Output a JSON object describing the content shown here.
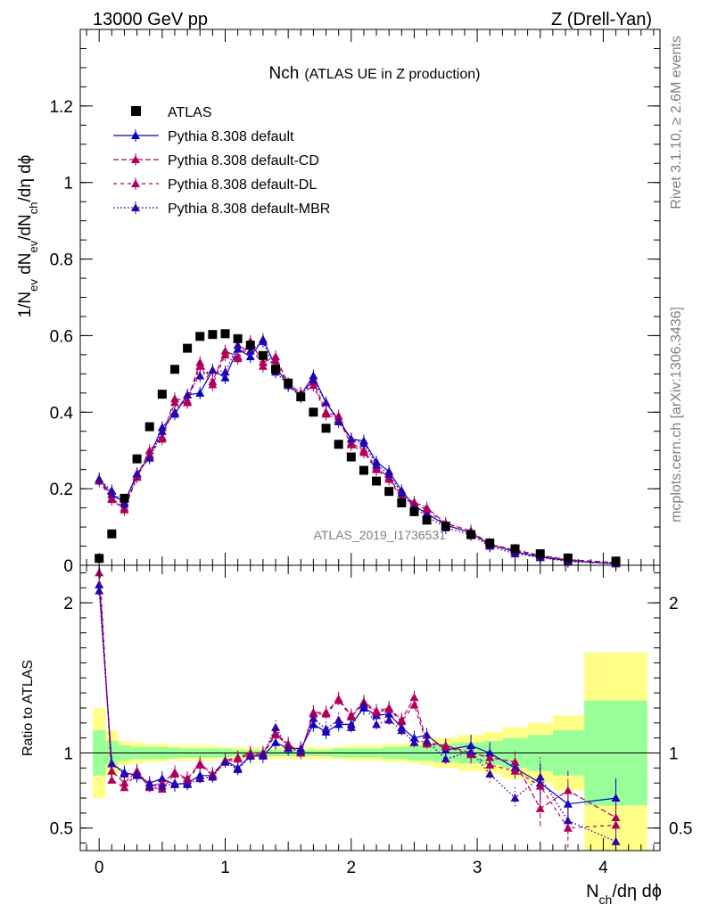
{
  "header": {
    "left": "13000 GeV pp",
    "right": "Z (Drell-Yan)"
  },
  "side_labels": {
    "rivet": "Rivet 3.1.10, ≥ 2.6M events",
    "mcplots": "mcplots.cern.ch [arXiv:1306.3436]"
  },
  "watermark": "ATLAS_2019_I1736531",
  "colors": {
    "atlas": "#000000",
    "default": "#0000cc",
    "cd": "#b0005c",
    "dl": "#b0005c",
    "mbr": "#3300aa",
    "band_inner": "#99ff99",
    "band_outer": "#ffff88"
  },
  "chart_data": [
    {
      "type": "scatter",
      "title": "Nch",
      "subtitle": "(ATLAS UE in Z production)",
      "ylabel": {
        "main": "1/N",
        "sub1": "ev",
        "mid1": " dN",
        "sub2": "ev",
        "mid2": "/dN",
        "sub3": "ch",
        "tail": "/dη dϕ"
      },
      "xlim": [
        -0.15,
        4.45
      ],
      "ylim": [
        0,
        1.4
      ],
      "yticks": [
        0,
        0.2,
        0.4,
        0.6,
        0.8,
        1,
        1.2
      ],
      "ytick_labels": [
        "0",
        "0.2",
        "0.4",
        "0.6",
        "0.8",
        "1",
        "1.2"
      ],
      "legend": [
        "ATLAS",
        "Pythia 8.308 default",
        "Pythia 8.308 default-CD",
        "Pythia 8.308 default-DL",
        "Pythia 8.308 default-MBR"
      ],
      "data": {
        "x": [
          0.0,
          0.1,
          0.2,
          0.3,
          0.4,
          0.5,
          0.6,
          0.7,
          0.8,
          0.9,
          1.0,
          1.1,
          1.2,
          1.3,
          1.4,
          1.5,
          1.6,
          1.7,
          1.8,
          1.9,
          2.0,
          2.1,
          2.2,
          2.3,
          2.4,
          2.5,
          2.6,
          2.75,
          2.95,
          3.1,
          3.3,
          3.5,
          3.72,
          4.1
        ],
        "y": [
          0.018,
          0.082,
          0.175,
          0.278,
          0.362,
          0.447,
          0.512,
          0.567,
          0.598,
          0.603,
          0.605,
          0.592,
          0.575,
          0.548,
          0.512,
          0.476,
          0.44,
          0.4,
          0.358,
          0.316,
          0.283,
          0.248,
          0.22,
          0.193,
          0.163,
          0.14,
          0.118,
          0.102,
          0.08,
          0.058,
          0.043,
          0.03,
          0.019,
          0.011
        ]
      },
      "series": [
        {
          "name": "Pythia 8.308 default",
          "x": [
            0.0,
            0.1,
            0.2,
            0.3,
            0.4,
            0.5,
            0.6,
            0.7,
            0.8,
            0.9,
            1.0,
            1.1,
            1.2,
            1.3,
            1.4,
            1.5,
            1.6,
            1.7,
            1.8,
            1.9,
            2.0,
            2.1,
            2.2,
            2.3,
            2.4,
            2.5,
            2.6,
            2.75,
            2.95,
            3.1,
            3.3,
            3.5,
            3.72,
            4.1
          ],
          "y": [
            0.225,
            0.185,
            0.165,
            0.238,
            0.285,
            0.36,
            0.395,
            0.445,
            0.45,
            0.51,
            0.49,
            0.565,
            0.545,
            0.59,
            0.52,
            0.47,
            0.445,
            0.495,
            0.425,
            0.38,
            0.33,
            0.325,
            0.27,
            0.245,
            0.195,
            0.155,
            0.135,
            0.105,
            0.085,
            0.055,
            0.035,
            0.022,
            0.012,
            0.004
          ]
        },
        {
          "name": "Pythia 8.308 default-CD",
          "x": [
            0.0,
            0.1,
            0.2,
            0.3,
            0.4,
            0.5,
            0.6,
            0.7,
            0.8,
            0.9,
            1.0,
            1.1,
            1.2,
            1.3,
            1.4,
            1.5,
            1.6,
            1.7,
            1.8,
            1.9,
            2.0,
            2.1,
            2.2,
            2.3,
            2.4,
            2.5,
            2.6,
            2.75,
            2.95,
            3.1,
            3.3,
            3.5,
            3.72,
            4.1
          ],
          "y": [
            0.225,
            0.175,
            0.15,
            0.232,
            0.3,
            0.335,
            0.435,
            0.43,
            0.53,
            0.48,
            0.56,
            0.545,
            0.585,
            0.53,
            0.545,
            0.475,
            0.45,
            0.48,
            0.4,
            0.39,
            0.32,
            0.3,
            0.255,
            0.23,
            0.18,
            0.165,
            0.15,
            0.11,
            0.09,
            0.055,
            0.04,
            0.026,
            0.015,
            0.007
          ]
        },
        {
          "name": "Pythia 8.308 default-DL",
          "x": [
            0.0,
            0.1,
            0.2,
            0.3,
            0.4,
            0.5,
            0.6,
            0.7,
            0.8,
            0.9,
            1.0,
            1.1,
            1.2,
            1.3,
            1.4,
            1.5,
            1.6,
            1.7,
            1.8,
            1.9,
            2.0,
            2.1,
            2.2,
            2.3,
            2.4,
            2.5,
            2.6,
            2.75,
            2.95,
            3.1,
            3.3,
            3.5,
            3.72,
            4.1
          ],
          "y": [
            0.22,
            0.172,
            0.145,
            0.23,
            0.29,
            0.33,
            0.425,
            0.425,
            0.52,
            0.472,
            0.55,
            0.54,
            0.575,
            0.52,
            0.535,
            0.47,
            0.445,
            0.47,
            0.395,
            0.382,
            0.315,
            0.295,
            0.25,
            0.225,
            0.176,
            0.16,
            0.145,
            0.106,
            0.086,
            0.052,
            0.038,
            0.024,
            0.014,
            0.006
          ]
        },
        {
          "name": "Pythia 8.308 default-MBR",
          "x": [
            0.0,
            0.1,
            0.2,
            0.3,
            0.4,
            0.5,
            0.6,
            0.7,
            0.8,
            0.9,
            1.0,
            1.1,
            1.2,
            1.3,
            1.4,
            1.5,
            1.6,
            1.7,
            1.8,
            1.9,
            2.0,
            2.1,
            2.2,
            2.3,
            2.4,
            2.5,
            2.6,
            2.75,
            2.95,
            3.1,
            3.3,
            3.5,
            3.72,
            4.1
          ],
          "y": [
            0.225,
            0.195,
            0.16,
            0.24,
            0.28,
            0.35,
            0.4,
            0.445,
            0.495,
            0.51,
            0.505,
            0.575,
            0.56,
            0.585,
            0.505,
            0.47,
            0.44,
            0.485,
            0.425,
            0.375,
            0.33,
            0.318,
            0.262,
            0.238,
            0.188,
            0.15,
            0.128,
            0.098,
            0.08,
            0.05,
            0.03,
            0.02,
            0.01,
            0.004
          ]
        }
      ]
    },
    {
      "type": "line",
      "ylabel": "Ratio to ATLAS",
      "xlabel": {
        "a": "N",
        "sub": "ch",
        "b": "/dη dϕ"
      },
      "xlim": [
        -0.15,
        4.45
      ],
      "ylim": [
        0.35,
        2.25
      ],
      "xticks": [
        0,
        1,
        2,
        3,
        4
      ],
      "xtick_labels": [
        "0",
        "1",
        "2",
        "3",
        "4"
      ],
      "yticks": [
        0.5,
        1,
        2
      ],
      "ytick_labels": [
        "0.5",
        "1",
        "2"
      ],
      "bands": {
        "edges": [
          -0.05,
          0.05,
          0.15,
          0.25,
          0.35,
          0.45,
          0.55,
          0.65,
          0.75,
          0.85,
          0.95,
          1.05,
          1.15,
          1.25,
          1.35,
          1.45,
          1.55,
          1.65,
          1.75,
          1.85,
          1.95,
          2.05,
          2.15,
          2.25,
          2.35,
          2.45,
          2.55,
          2.65,
          2.85,
          3.05,
          3.2,
          3.4,
          3.6,
          3.85,
          4.35
        ],
        "inner": [
          0.15,
          0.08,
          0.05,
          0.04,
          0.04,
          0.04,
          0.035,
          0.03,
          0.03,
          0.03,
          0.03,
          0.02,
          0.02,
          0.02,
          0.02,
          0.02,
          0.02,
          0.02,
          0.02,
          0.03,
          0.03,
          0.03,
          0.03,
          0.04,
          0.04,
          0.05,
          0.05,
          0.06,
          0.07,
          0.08,
          0.1,
          0.12,
          0.15,
          0.35
        ],
        "outer": [
          0.3,
          0.15,
          0.08,
          0.07,
          0.06,
          0.06,
          0.05,
          0.05,
          0.05,
          0.05,
          0.04,
          0.04,
          0.04,
          0.04,
          0.04,
          0.04,
          0.04,
          0.04,
          0.04,
          0.04,
          0.05,
          0.05,
          0.05,
          0.06,
          0.06,
          0.07,
          0.08,
          0.1,
          0.12,
          0.14,
          0.17,
          0.2,
          0.25,
          0.67
        ]
      },
      "series": [
        {
          "name": "Pythia 8.308 default",
          "x": [
            0.0,
            0.1,
            0.2,
            0.3,
            0.4,
            0.5,
            0.6,
            0.7,
            0.8,
            0.9,
            1.0,
            1.1,
            1.2,
            1.3,
            1.4,
            1.5,
            1.6,
            1.7,
            1.8,
            1.9,
            2.0,
            2.1,
            2.2,
            2.3,
            2.4,
            2.5,
            2.6,
            2.75,
            2.95,
            3.1,
            3.3,
            3.5,
            3.72,
            4.1
          ],
          "y": [
            2.12,
            0.93,
            0.87,
            0.85,
            0.8,
            0.83,
            0.79,
            0.8,
            0.85,
            0.85,
            0.95,
            0.9,
            0.98,
            0.98,
            1.07,
            1.03,
            1.03,
            1.19,
            1.14,
            1.19,
            1.19,
            1.3,
            1.25,
            1.26,
            1.17,
            1.1,
            1.12,
            1.02,
            1.05,
            1.0,
            0.9,
            0.8,
            0.66,
            0.7
          ]
        },
        {
          "name": "Pythia 8.308 default-CD",
          "x": [
            0.0,
            0.1,
            0.2,
            0.3,
            0.4,
            0.5,
            0.6,
            0.7,
            0.8,
            0.9,
            1.0,
            1.1,
            1.2,
            1.3,
            1.4,
            1.5,
            1.6,
            1.7,
            1.8,
            1.9,
            2.0,
            2.1,
            2.2,
            2.3,
            2.4,
            2.5,
            2.6,
            2.75,
            2.95,
            3.1,
            3.3,
            3.5,
            3.72,
            4.1
          ],
          "y": [
            2.2,
            0.88,
            0.8,
            0.88,
            0.78,
            0.8,
            0.87,
            0.83,
            0.93,
            0.86,
            0.95,
            0.97,
            1.0,
            1.0,
            1.13,
            1.06,
            1.0,
            1.27,
            1.27,
            1.36,
            1.25,
            1.34,
            1.28,
            1.3,
            1.22,
            1.37,
            1.07,
            1.05,
            1.0,
            0.97,
            0.94,
            0.63,
            0.75,
            0.57
          ]
        },
        {
          "name": "Pythia 8.308 default-DL",
          "x": [
            0.0,
            0.1,
            0.2,
            0.3,
            0.4,
            0.5,
            0.6,
            0.7,
            0.8,
            0.9,
            1.0,
            1.1,
            1.2,
            1.3,
            1.4,
            1.5,
            1.6,
            1.7,
            1.8,
            1.9,
            2.0,
            2.1,
            2.2,
            2.3,
            2.4,
            2.5,
            2.6,
            2.75,
            2.95,
            3.1,
            3.3,
            3.5,
            3.72,
            4.1
          ],
          "y": [
            2.28,
            0.82,
            0.77,
            0.87,
            0.77,
            0.76,
            0.86,
            0.82,
            0.92,
            0.85,
            0.94,
            0.96,
            0.99,
            0.99,
            1.12,
            1.05,
            1.0,
            1.26,
            1.26,
            1.35,
            1.24,
            1.33,
            1.27,
            1.29,
            1.21,
            1.32,
            1.06,
            1.04,
            0.99,
            0.92,
            0.88,
            0.78,
            0.5,
            0.52
          ]
        },
        {
          "name": "Pythia 8.308 default-MBR",
          "x": [
            0.0,
            0.1,
            0.2,
            0.3,
            0.4,
            0.5,
            0.6,
            0.7,
            0.8,
            0.9,
            1.0,
            1.1,
            1.2,
            1.3,
            1.4,
            1.5,
            1.6,
            1.7,
            1.8,
            1.9,
            2.0,
            2.1,
            2.2,
            2.3,
            2.4,
            2.5,
            2.6,
            2.75,
            2.95,
            3.1,
            3.3,
            3.5,
            3.72,
            4.1
          ],
          "y": [
            2.08,
            0.93,
            0.86,
            0.86,
            0.78,
            0.78,
            0.8,
            0.79,
            0.83,
            0.84,
            0.94,
            0.89,
            0.98,
            0.99,
            1.17,
            1.03,
            1.01,
            1.23,
            1.16,
            1.22,
            1.17,
            1.32,
            1.19,
            1.22,
            1.15,
            1.07,
            1.08,
            0.96,
            1.01,
            0.86,
            0.7,
            0.84,
            0.55,
            0.41
          ]
        }
      ]
    }
  ]
}
